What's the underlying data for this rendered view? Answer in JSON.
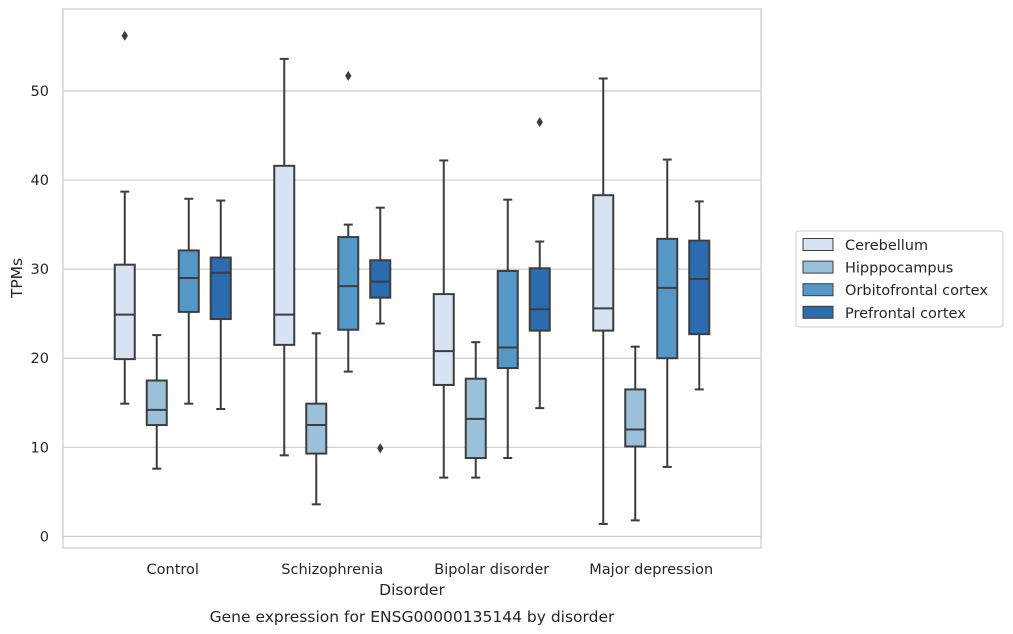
{
  "chart_data": {
    "type": "box",
    "title": "Gene expression for ENSG00000135144 by disorder",
    "xlabel": "Disorder",
    "ylabel": "TPMs",
    "ylim": [
      -1.3,
      59.2
    ],
    "yticks": [
      0,
      10,
      20,
      30,
      40,
      50
    ],
    "grid": "horizontal",
    "legend_position": "right",
    "categories": [
      "Control",
      "Schizophrenia",
      "Bipolar disorder",
      "Major depression"
    ],
    "series": [
      {
        "name": "Cerebellum",
        "color": "#d6e3f2",
        "boxes": [
          {
            "whislo": 14.9,
            "q1": 19.9,
            "med": 24.9,
            "q3": 30.5,
            "whishi": 38.7,
            "fliers": [
              56.2
            ]
          },
          {
            "whislo": 9.1,
            "q1": 21.5,
            "med": 24.9,
            "q3": 41.6,
            "whishi": 53.6,
            "fliers": []
          },
          {
            "whislo": 6.6,
            "q1": 17.0,
            "med": 20.8,
            "q3": 27.2,
            "whishi": 42.2,
            "fliers": []
          },
          {
            "whislo": 1.4,
            "q1": 23.1,
            "med": 25.6,
            "q3": 38.3,
            "whishi": 51.4,
            "fliers": []
          }
        ]
      },
      {
        "name": "Hipppocampus",
        "color": "#9ac0da",
        "boxes": [
          {
            "whislo": 7.6,
            "q1": 12.5,
            "med": 14.2,
            "q3": 17.5,
            "whishi": 22.6,
            "fliers": []
          },
          {
            "whislo": 3.6,
            "q1": 9.3,
            "med": 12.5,
            "q3": 14.9,
            "whishi": 22.8,
            "fliers": []
          },
          {
            "whislo": 6.6,
            "q1": 8.8,
            "med": 13.2,
            "q3": 17.7,
            "whishi": 21.8,
            "fliers": []
          },
          {
            "whislo": 1.8,
            "q1": 10.1,
            "med": 12.0,
            "q3": 16.5,
            "whishi": 21.3,
            "fliers": []
          }
        ]
      },
      {
        "name": "Orbitofrontal cortex",
        "color": "#5597c6",
        "boxes": [
          {
            "whislo": 14.9,
            "q1": 25.2,
            "med": 29.0,
            "q3": 32.1,
            "whishi": 37.9,
            "fliers": []
          },
          {
            "whislo": 18.5,
            "q1": 23.2,
            "med": 28.1,
            "q3": 33.6,
            "whishi": 35.0,
            "fliers": [
              51.7
            ]
          },
          {
            "whislo": 8.8,
            "q1": 18.9,
            "med": 21.2,
            "q3": 29.8,
            "whishi": 37.8,
            "fliers": []
          },
          {
            "whislo": 7.8,
            "q1": 20.0,
            "med": 27.9,
            "q3": 33.4,
            "whishi": 42.3,
            "fliers": []
          }
        ]
      },
      {
        "name": "Prefrontal cortex",
        "color": "#2a6caf",
        "boxes": [
          {
            "whislo": 14.3,
            "q1": 24.4,
            "med": 29.6,
            "q3": 31.3,
            "whishi": 37.7,
            "fliers": []
          },
          {
            "whislo": 23.9,
            "q1": 26.8,
            "med": 28.6,
            "q3": 31.0,
            "whishi": 36.9,
            "fliers": [
              9.9
            ]
          },
          {
            "whislo": 14.4,
            "q1": 23.1,
            "med": 25.5,
            "q3": 30.1,
            "whishi": 33.1,
            "fliers": [
              46.5
            ]
          },
          {
            "whislo": 16.5,
            "q1": 22.7,
            "med": 28.9,
            "q3": 33.2,
            "whishi": 37.6,
            "fliers": []
          }
        ]
      }
    ]
  }
}
